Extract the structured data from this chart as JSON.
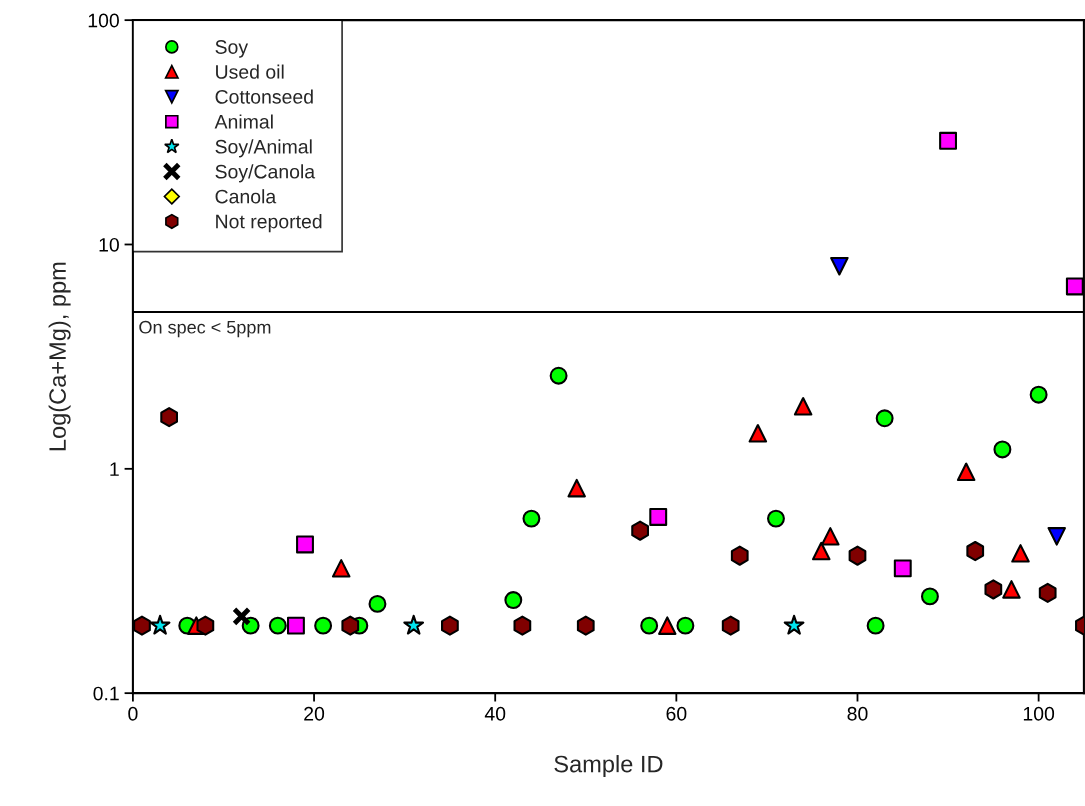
{
  "chart_data": {
    "type": "scatter",
    "xlabel": "Sample ID",
    "ylabel": "Log(Ca+Mg), ppm",
    "log": "y",
    "xlim": [
      0,
      105
    ],
    "xticks": [
      0,
      20,
      40,
      60,
      80,
      100
    ],
    "ylim": [
      0.1,
      100
    ],
    "yticks": [
      0.1,
      1,
      10,
      100
    ],
    "grid": false,
    "legend": "top left",
    "ref_lines": [
      {
        "axis": "y",
        "value": 5,
        "label": "On spec < 5ppm",
        "color": "#000000",
        "line_style": "solid"
      }
    ],
    "series": [
      {
        "name": "Soy",
        "color": "#00ff00",
        "marker": "circle",
        "x": [
          6,
          13,
          16,
          21,
          25,
          27,
          42,
          44,
          47,
          57,
          61,
          71,
          82,
          83,
          88,
          96,
          100
        ],
        "values": [
          0.2,
          0.2,
          0.2,
          0.2,
          0.2,
          0.25,
          0.26,
          0.6,
          2.6,
          0.2,
          0.2,
          0.6,
          0.2,
          1.68,
          0.27,
          1.22,
          2.14
        ]
      },
      {
        "name": "Used oil",
        "color": "#ff0000",
        "marker": "triangle",
        "x": [
          7,
          23,
          49,
          59,
          69,
          74,
          76,
          77,
          92,
          97,
          98
        ],
        "values": [
          0.2,
          0.36,
          0.82,
          0.2,
          1.44,
          1.9,
          0.43,
          0.5,
          0.97,
          0.29,
          0.42
        ]
      },
      {
        "name": "Cottonseed",
        "color": "#0000ff",
        "marker": "triangle_down",
        "x": [
          78,
          102
        ],
        "values": [
          8.0,
          0.5
        ]
      },
      {
        "name": "Animal",
        "color": "#ff00ff",
        "marker": "square",
        "x": [
          18,
          19,
          58,
          85,
          90,
          104
        ],
        "values": [
          0.2,
          0.46,
          0.61,
          0.36,
          29,
          6.5
        ]
      },
      {
        "name": "Soy/Animal",
        "color": "#00e5ee",
        "marker": "star",
        "x": [
          3,
          31,
          73
        ],
        "values": [
          0.2,
          0.2,
          0.2
        ]
      },
      {
        "name": "Soy/Canola",
        "color": "#000000",
        "marker": "cross",
        "x": [
          12
        ],
        "values": [
          0.22
        ]
      },
      {
        "name": "Canola",
        "color": "#ffff00",
        "marker": "diamond"
      },
      {
        "name": "Not reported",
        "color": "#800000",
        "x": [
          1,
          4,
          8,
          24,
          35,
          43,
          50,
          56,
          66,
          67,
          80,
          93,
          95,
          101,
          105
        ],
        "values": [
          0.2,
          1.7,
          0.2,
          0.2,
          0.2,
          0.2,
          0.2,
          0.53,
          0.2,
          0.41,
          0.41,
          0.43,
          0.29,
          0.28,
          0.2
        ]
      }
    ]
  }
}
